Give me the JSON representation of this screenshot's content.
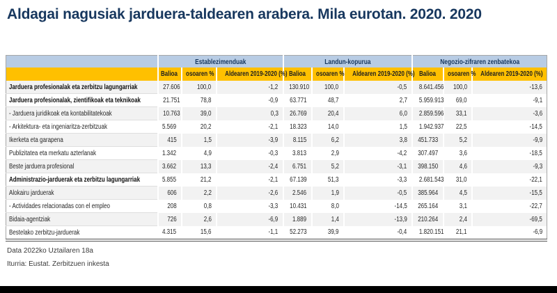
{
  "page": {
    "title": "Aldagai nagusiak jarduera-taldearen arabera. Mila eurotan. 2020. 2020"
  },
  "colors": {
    "title_color": "#17375E",
    "group_bg": "#B8CCE4",
    "group_fg": "#17375E",
    "colhead_bg": "#FFC000",
    "colhead_fg": "#1F1F1F",
    "stripe_bg": "#F2F2F2",
    "bar_bg": "#000000"
  },
  "table": {
    "groups": [
      {
        "label": "Establezimenduak",
        "columns": [
          "Balioa",
          "osoaren %",
          "Aldearen 2019-2020 (%)"
        ]
      },
      {
        "label": "Landun-kopurua",
        "columns": [
          "Balioa",
          "osoaren %",
          "Aldearen 2019-2020 (%)"
        ]
      },
      {
        "label": "Negozio-zifraren zenbatekoa",
        "columns": [
          "Balioa",
          "osoaren %",
          "Aldearen 2019-2020 (%)"
        ]
      }
    ],
    "rows": [
      {
        "label": "Jarduera profesionalak eta zerbitzu lagungarriak",
        "bold": true,
        "values": [
          "27.606",
          "100,0",
          "-1,2",
          "130.910",
          "100,0",
          "-0,5",
          "8.641.456",
          "100,0",
          "-13,6"
        ]
      },
      {
        "label": "Jarduera profesionalak, zientifikoak eta teknikoak",
        "bold": true,
        "values": [
          "21.751",
          "78,8",
          "-0,9",
          "63.771",
          "48,7",
          "2,7",
          "5.959.913",
          "69,0",
          "-9,1"
        ]
      },
      {
        "label": "- Jarduera juridikoak eta kontabilitatekoak",
        "bold": false,
        "values": [
          "10.763",
          "39,0",
          "0,3",
          "26.769",
          "20,4",
          "6,0",
          "2.859.596",
          "33,1",
          "-3,6"
        ]
      },
      {
        "label": "- Arkitektura- eta ingeniaritza-zerbitzuak",
        "bold": false,
        "values": [
          "5.569",
          "20,2",
          "-2,1",
          "18.323",
          "14,0",
          "1,5",
          "1.942.937",
          "22,5",
          "-14,5"
        ]
      },
      {
        "label": "Ikerketa eta garapena",
        "bold": false,
        "values": [
          "415",
          "1,5",
          "-3,9",
          "8.115",
          "6,2",
          "3,8",
          "451.733",
          "5,2",
          "-9,9"
        ]
      },
      {
        "label": "Publizitatea eta merkatu azterlanak",
        "bold": false,
        "values": [
          "1.342",
          "4,9",
          "-0,3",
          "3.813",
          "2,9",
          "-4,2",
          "307.497",
          "3,6",
          "-18,5"
        ]
      },
      {
        "label": "Beste jarduera profesional",
        "bold": false,
        "values": [
          "3.662",
          "13,3",
          "-2,4",
          "6.751",
          "5,2",
          "-3,1",
          "398.150",
          "4,6",
          "-9,3"
        ]
      },
      {
        "label": "Administrazio-jarduerak eta zerbitzu lagungarriak",
        "bold": true,
        "values": [
          "5.855",
          "21,2",
          "-2,1",
          "67.139",
          "51,3",
          "-3,3",
          "2.681.543",
          "31,0",
          "-22,1"
        ]
      },
      {
        "label": "Alokairu jarduerak",
        "bold": false,
        "values": [
          "606",
          "2,2",
          "-2,6",
          "2.546",
          "1,9",
          "-0,5",
          "385.964",
          "4,5",
          "-15,5"
        ]
      },
      {
        "label": "- Actividades relacionadas con el empleo",
        "bold": false,
        "values": [
          "208",
          "0,8",
          "-3,3",
          "10.431",
          "8,0",
          "-14,5",
          "265.164",
          "3,1",
          "-22,7"
        ]
      },
      {
        "label": "Bidaia-agentziak",
        "bold": false,
        "values": [
          "726",
          "2,6",
          "-6,9",
          "1.889",
          "1,4",
          "-13,9",
          "210.264",
          "2,4",
          "-69,5"
        ]
      },
      {
        "label": "Bestelako zerbitzu-jarduerak",
        "bold": false,
        "values": [
          "4.315",
          "15,6",
          "-1,1",
          "52.273",
          "39,9",
          "-0,4",
          "1.820.151",
          "21,1",
          "-6,9"
        ]
      }
    ]
  },
  "footer": {
    "date_note": "Data 2022ko Uztailaren 18a",
    "source_note": "Iturria: Eustat. Zerbitzuen inkesta"
  }
}
